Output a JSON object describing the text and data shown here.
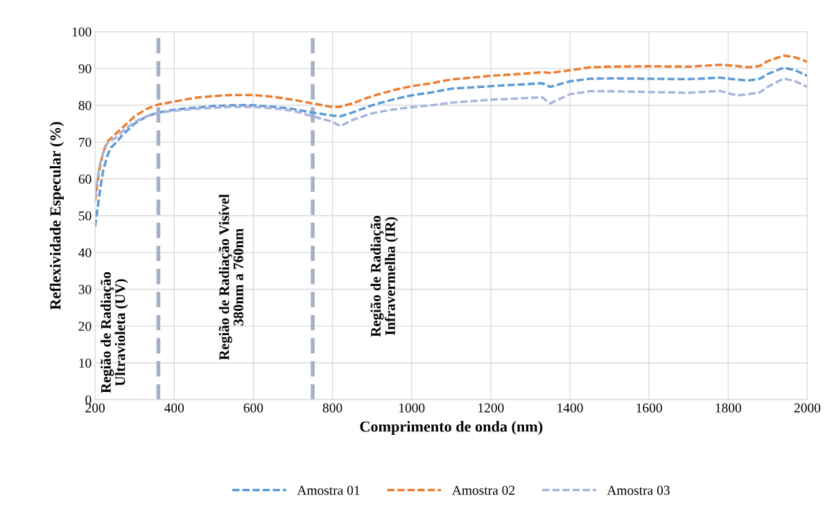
{
  "chart_data": {
    "type": "line",
    "xlabel": "Comprimento de onda (nm)",
    "ylabel": "Reflexividade Especular (%)",
    "x": [
      200,
      210,
      220,
      230,
      240,
      250,
      270,
      300,
      330,
      360,
      400,
      450,
      500,
      550,
      600,
      650,
      700,
      750,
      800,
      820,
      850,
      900,
      950,
      1000,
      1050,
      1100,
      1200,
      1300,
      1330,
      1350,
      1400,
      1450,
      1500,
      1600,
      1700,
      1780,
      1820,
      1850,
      1880,
      1900,
      1940,
      1970,
      2000
    ],
    "series": [
      {
        "name": "Amostra 01",
        "color": "#5b9bd5",
        "values": [
          47,
          55,
          62,
          66,
          68.5,
          69.5,
          72,
          75,
          77,
          78,
          78.8,
          79.3,
          79.8,
          80,
          80,
          79.6,
          79,
          78,
          77.2,
          77,
          78,
          80,
          81.5,
          82.7,
          83.5,
          84.5,
          85.2,
          85.8,
          86,
          85,
          86.5,
          87.2,
          87.3,
          87.2,
          87.1,
          87.5,
          87,
          86.7,
          87.2,
          88.5,
          90.2,
          89.5,
          88
        ]
      },
      {
        "name": "Amostra 02",
        "color": "#ed7d31",
        "values": [
          54,
          62,
          67,
          70,
          71,
          72,
          74,
          77,
          79,
          80.2,
          81,
          82,
          82.5,
          82.8,
          82.8,
          82.3,
          81.5,
          80.5,
          79.5,
          79.6,
          80.5,
          82.5,
          84,
          85.2,
          86,
          87,
          88,
          88.7,
          89,
          88.8,
          89.5,
          90.3,
          90.5,
          90.6,
          90.5,
          91,
          90.7,
          90.3,
          90.7,
          92,
          93.5,
          93,
          91.8
        ]
      },
      {
        "name": "Amostra 03",
        "color": "#a9b4dc",
        "values": [
          55,
          63,
          67,
          69.5,
          70.5,
          71,
          73,
          75.5,
          77,
          78,
          78.5,
          79,
          79.3,
          79.6,
          79.5,
          79.2,
          78.5,
          77,
          75.5,
          74.3,
          76,
          77.8,
          78.8,
          79.5,
          80,
          80.7,
          81.5,
          82,
          82.2,
          80.5,
          83,
          83.8,
          83.8,
          83.6,
          83.4,
          83.9,
          82.7,
          83,
          83.5,
          85,
          87.3,
          86.5,
          85
        ]
      }
    ],
    "xlim": [
      200,
      2000
    ],
    "xticks": [
      200,
      400,
      600,
      800,
      1000,
      1200,
      1400,
      1600,
      1800,
      2000
    ],
    "ylim": [
      0,
      100
    ],
    "yticks": [
      0,
      10,
      20,
      30,
      40,
      50,
      60,
      70,
      80,
      90,
      100
    ],
    "ref_lines": [
      {
        "axis": "x",
        "value": 360,
        "color": "#a5b0c6",
        "line_style": "dashed"
      },
      {
        "axis": "x",
        "value": 750,
        "color": "#a5b0c6",
        "line_style": "dashed"
      }
    ],
    "annotations": [
      "Região de Radiação\nUltravioleta (UV)",
      "Região de Radiação Visível\n380nm a 760nm",
      "Região de Radiação\nInfravermelha (IR)"
    ],
    "grid": true,
    "legend": "bottom",
    "line_style": "dashed",
    "marker": "none"
  }
}
